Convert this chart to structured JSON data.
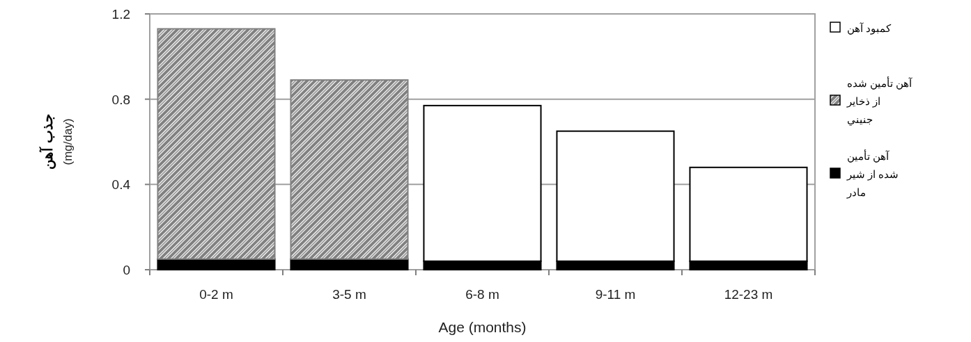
{
  "chart_data": {
    "type": "bar",
    "stacked": true,
    "xlabel": "Age (months)",
    "ylabel": "جذب آهن (mg/day)",
    "categories": [
      "0-2 m",
      "3-5 m",
      "6-8 m",
      "9-11 m",
      "12-23 m"
    ],
    "series": [
      {
        "name": "آهن تأمین شده از شیر مادر",
        "color": "#000000",
        "values": [
          0.05,
          0.05,
          0.04,
          0.04,
          0.04
        ]
      },
      {
        "name": "آهن تأمین شده از ذخاير جنيني",
        "color": "#808080",
        "values": [
          1.08,
          0.84,
          null,
          null,
          null
        ]
      },
      {
        "name": "کمبود آهن",
        "color": "#ffffff",
        "values": [
          null,
          null,
          0.73,
          0.61,
          0.44
        ]
      }
    ],
    "ylim": [
      0,
      1.2
    ],
    "yticks": [
      0,
      0.4,
      0.8,
      1.2
    ],
    "grid": "y",
    "legend": "right"
  }
}
